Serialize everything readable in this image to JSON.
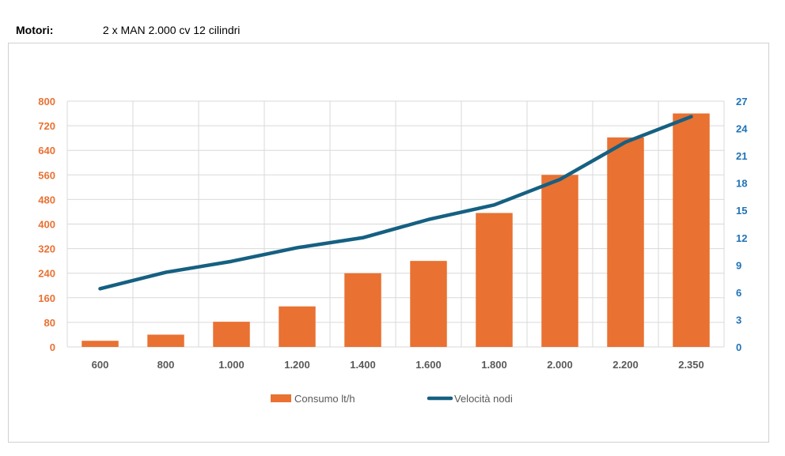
{
  "header": {
    "label": "Motori:",
    "value": "2 x MAN 2.000 cv 12 cilindri"
  },
  "colors": {
    "bar": "#e97132",
    "line": "#156082",
    "left_axis": "#e97132",
    "right_axis": "#1f73b7",
    "grid": "#d9d9d9",
    "x_text": "#595959"
  },
  "chart_data": {
    "type": "bar",
    "categories": [
      "600",
      "800",
      "1.000",
      "1.200",
      "1.400",
      "1.600",
      "1.800",
      "2.000",
      "2.200",
      "2.350"
    ],
    "series": [
      {
        "name": "Consumo lt/h",
        "type": "bar",
        "axis": "left",
        "values": [
          20,
          40,
          82,
          132,
          240,
          280,
          436,
          560,
          682,
          760
        ]
      },
      {
        "name": "Velocità nodi",
        "type": "line",
        "axis": "right",
        "values": [
          6.4,
          8.2,
          9.4,
          10.9,
          12.0,
          14.0,
          15.6,
          18.4,
          22.5,
          25.3
        ]
      }
    ],
    "ylim_left": [
      0,
      800
    ],
    "yticks_left": [
      "0",
      "80",
      "160",
      "240",
      "320",
      "400",
      "480",
      "560",
      "640",
      "720",
      "800"
    ],
    "ylim_right": [
      0,
      27
    ],
    "yticks_right": [
      "0",
      "3",
      "6",
      "9",
      "12",
      "15",
      "18",
      "21",
      "24",
      "27"
    ],
    "legend": {
      "position": "bottom",
      "entries": [
        "Consumo lt/h",
        "Velocità nodi"
      ]
    },
    "grid": true
  }
}
